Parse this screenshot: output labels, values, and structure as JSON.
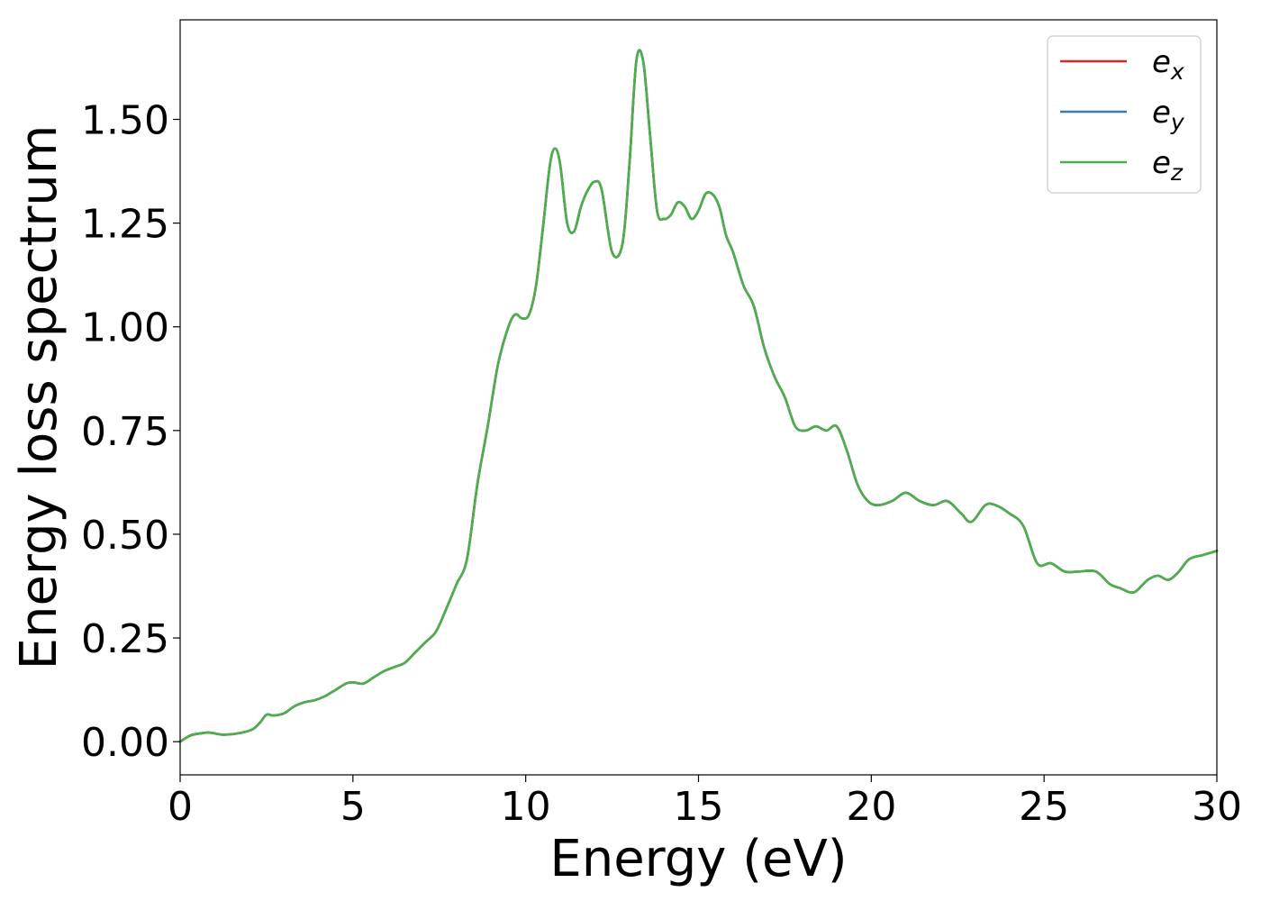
{
  "chart_data": {
    "type": "line",
    "title": "",
    "xlabel": "Energy (eV)",
    "ylabel": "Energy loss spectrum",
    "xlim": [
      0,
      30
    ],
    "ylim": [
      -0.08,
      1.74
    ],
    "xticks": [
      0,
      5,
      10,
      15,
      20,
      25,
      30
    ],
    "xtick_labels": [
      "0",
      "5",
      "10",
      "15",
      "20",
      "25",
      "30"
    ],
    "yticks": [
      0.0,
      0.25,
      0.5,
      0.75,
      1.0,
      1.25,
      1.5
    ],
    "ytick_labels": [
      "0.00",
      "0.25",
      "0.50",
      "0.75",
      "1.00",
      "1.25",
      "1.50"
    ],
    "grid": false,
    "legend_position": "top-right",
    "x": [
      0,
      0.3,
      0.6,
      0.8,
      1.0,
      1.2,
      1.5,
      1.8,
      2.1,
      2.3,
      2.5,
      2.7,
      3.0,
      3.3,
      3.6,
      3.9,
      4.2,
      4.5,
      4.8,
      5.0,
      5.3,
      5.6,
      5.9,
      6.2,
      6.5,
      6.8,
      7.1,
      7.4,
      7.7,
      8.0,
      8.3,
      8.6,
      8.9,
      9.2,
      9.5,
      9.7,
      9.9,
      10.1,
      10.3,
      10.5,
      10.7,
      10.85,
      11.0,
      11.2,
      11.4,
      11.6,
      11.8,
      12.0,
      12.2,
      12.5,
      12.8,
      13.0,
      13.2,
      13.4,
      13.6,
      13.8,
      14.0,
      14.2,
      14.4,
      14.6,
      14.8,
      15.0,
      15.2,
      15.4,
      15.6,
      15.8,
      16.0,
      16.3,
      16.6,
      16.9,
      17.2,
      17.5,
      17.8,
      18.1,
      18.4,
      18.7,
      19.0,
      19.3,
      19.6,
      19.9,
      20.2,
      20.6,
      21.0,
      21.4,
      21.8,
      22.2,
      22.6,
      22.9,
      23.3,
      23.6,
      24.0,
      24.4,
      24.8,
      25.2,
      25.6,
      26.0,
      26.5,
      26.9,
      27.2,
      27.6,
      28.0,
      28.3,
      28.6,
      28.9,
      29.2,
      29.6,
      30.0
    ],
    "series": [
      {
        "name": "e_x",
        "color": "#d62728",
        "values": [
          0.0,
          0.015,
          0.02,
          0.022,
          0.02,
          0.017,
          0.018,
          0.022,
          0.03,
          0.045,
          0.065,
          0.063,
          0.068,
          0.085,
          0.095,
          0.1,
          0.11,
          0.125,
          0.14,
          0.143,
          0.14,
          0.155,
          0.17,
          0.18,
          0.19,
          0.215,
          0.24,
          0.265,
          0.32,
          0.38,
          0.44,
          0.62,
          0.76,
          0.91,
          1.0,
          1.03,
          1.02,
          1.03,
          1.1,
          1.24,
          1.39,
          1.43,
          1.39,
          1.25,
          1.23,
          1.29,
          1.33,
          1.35,
          1.33,
          1.18,
          1.2,
          1.39,
          1.64,
          1.64,
          1.46,
          1.28,
          1.26,
          1.27,
          1.3,
          1.29,
          1.26,
          1.28,
          1.32,
          1.32,
          1.29,
          1.22,
          1.18,
          1.1,
          1.05,
          0.95,
          0.88,
          0.83,
          0.76,
          0.75,
          0.76,
          0.75,
          0.76,
          0.7,
          0.62,
          0.58,
          0.57,
          0.58,
          0.6,
          0.58,
          0.57,
          0.58,
          0.55,
          0.53,
          0.57,
          0.57,
          0.55,
          0.52,
          0.43,
          0.43,
          0.41,
          0.41,
          0.41,
          0.38,
          0.37,
          0.36,
          0.39,
          0.4,
          0.39,
          0.41,
          0.44,
          0.45,
          0.46
        ]
      },
      {
        "name": "e_y",
        "color": "#377eb8",
        "values": [
          0.0,
          0.015,
          0.02,
          0.022,
          0.02,
          0.017,
          0.018,
          0.022,
          0.03,
          0.045,
          0.065,
          0.063,
          0.068,
          0.085,
          0.095,
          0.1,
          0.11,
          0.125,
          0.14,
          0.143,
          0.14,
          0.155,
          0.17,
          0.18,
          0.19,
          0.215,
          0.24,
          0.265,
          0.32,
          0.38,
          0.44,
          0.62,
          0.76,
          0.91,
          1.0,
          1.03,
          1.02,
          1.03,
          1.1,
          1.24,
          1.39,
          1.43,
          1.39,
          1.25,
          1.23,
          1.29,
          1.33,
          1.35,
          1.33,
          1.18,
          1.2,
          1.39,
          1.64,
          1.64,
          1.46,
          1.28,
          1.26,
          1.27,
          1.3,
          1.29,
          1.26,
          1.28,
          1.32,
          1.32,
          1.29,
          1.22,
          1.18,
          1.1,
          1.05,
          0.95,
          0.88,
          0.83,
          0.76,
          0.75,
          0.76,
          0.75,
          0.76,
          0.7,
          0.62,
          0.58,
          0.57,
          0.58,
          0.6,
          0.58,
          0.57,
          0.58,
          0.55,
          0.53,
          0.57,
          0.57,
          0.55,
          0.52,
          0.43,
          0.43,
          0.41,
          0.41,
          0.41,
          0.38,
          0.37,
          0.36,
          0.39,
          0.4,
          0.39,
          0.41,
          0.44,
          0.45,
          0.46
        ]
      },
      {
        "name": "e_z",
        "color": "#4daf4a",
        "values": [
          0.0,
          0.015,
          0.02,
          0.022,
          0.02,
          0.017,
          0.018,
          0.022,
          0.03,
          0.045,
          0.065,
          0.063,
          0.068,
          0.085,
          0.095,
          0.1,
          0.11,
          0.125,
          0.14,
          0.143,
          0.14,
          0.155,
          0.17,
          0.18,
          0.19,
          0.215,
          0.24,
          0.265,
          0.32,
          0.38,
          0.44,
          0.62,
          0.76,
          0.91,
          1.0,
          1.03,
          1.02,
          1.03,
          1.1,
          1.24,
          1.39,
          1.43,
          1.39,
          1.25,
          1.23,
          1.29,
          1.33,
          1.35,
          1.33,
          1.18,
          1.2,
          1.39,
          1.64,
          1.64,
          1.46,
          1.28,
          1.26,
          1.27,
          1.3,
          1.29,
          1.26,
          1.28,
          1.32,
          1.32,
          1.29,
          1.22,
          1.18,
          1.1,
          1.05,
          0.95,
          0.88,
          0.83,
          0.76,
          0.75,
          0.76,
          0.75,
          0.76,
          0.7,
          0.62,
          0.58,
          0.57,
          0.58,
          0.6,
          0.58,
          0.57,
          0.58,
          0.55,
          0.53,
          0.57,
          0.57,
          0.55,
          0.52,
          0.43,
          0.43,
          0.41,
          0.41,
          0.41,
          0.38,
          0.37,
          0.36,
          0.39,
          0.4,
          0.39,
          0.41,
          0.44,
          0.45,
          0.46
        ]
      }
    ],
    "legend": [
      {
        "base": "e",
        "sub": "x",
        "color": "#d62728"
      },
      {
        "base": "e",
        "sub": "y",
        "color": "#377eb8"
      },
      {
        "base": "e",
        "sub": "z",
        "color": "#4daf4a"
      }
    ]
  }
}
